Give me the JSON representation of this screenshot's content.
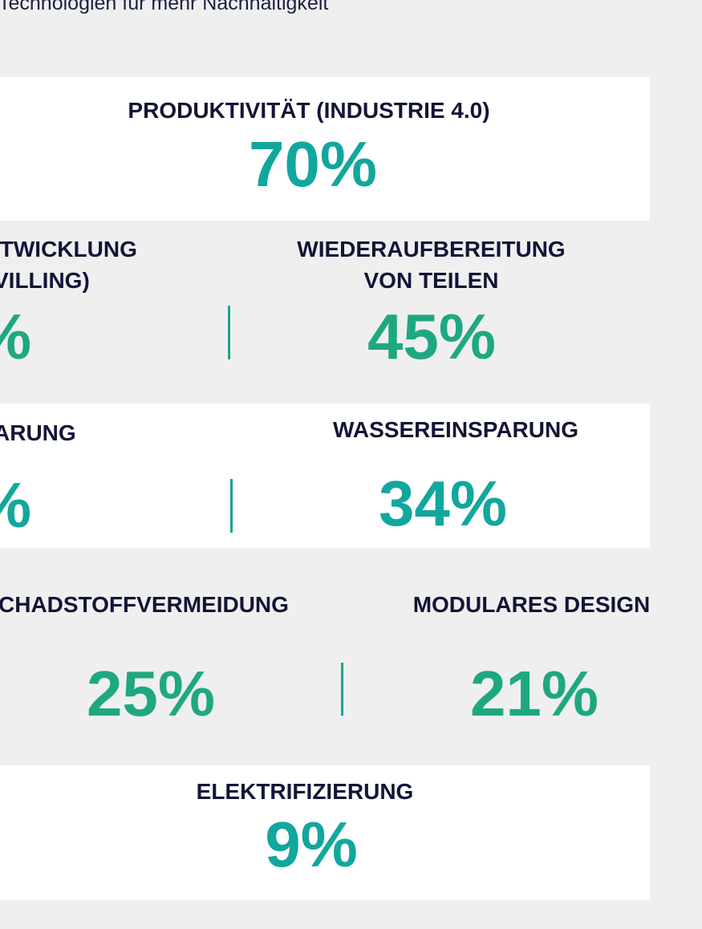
{
  "subtitle": "Technologien für mehr Nachhaltigkeit",
  "chart_data": {
    "type": "table",
    "items": [
      {
        "label": "PRODUKTIVITÄT (INDUSTRIE 4.0)",
        "value": "70%",
        "color": "#12a79e"
      },
      {
        "label_line1": "ITWICKLUNG",
        "label_line2": "VILLING)",
        "value": "%",
        "color": "#1ea881"
      },
      {
        "label_line1": "WIEDERAUFBEREITUNG",
        "label_line2": "VON TEILEN",
        "value": "45%",
        "color": "#1ea881"
      },
      {
        "label": "ARUNG",
        "value": "%",
        "color": "#12a79e"
      },
      {
        "label": "WASSEREINSPARUNG",
        "value": "34%",
        "color": "#12a79e"
      },
      {
        "label": "CHADSTOFFVERMEIDUNG",
        "value": "25%",
        "color": "#1ea881"
      },
      {
        "label": "MODULARES DESIGN",
        "value": "21%",
        "color": "#1ea881"
      },
      {
        "label": "ELEKTRIFIZIERUNG",
        "value": "9%",
        "color": "#12a79e"
      }
    ]
  }
}
